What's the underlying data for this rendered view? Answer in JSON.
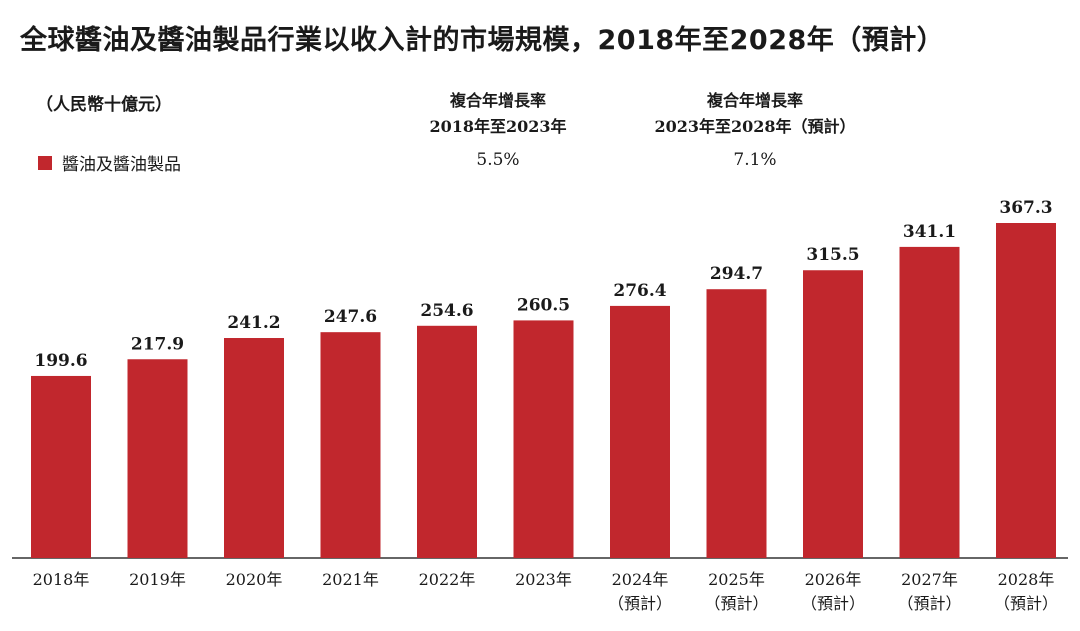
{
  "title": "全球醬油及醬油製品行業以收入計的市場規模，2018年至2028年（預計）",
  "unit": "（人民幣十億元）",
  "cagr": [
    {
      "head1": "複合年增長率",
      "head2": "2018年至2023年",
      "value": "5.5%"
    },
    {
      "head1": "複合年增長率",
      "head2": "2023年至2028年（預計）",
      "value": "7.1%"
    }
  ],
  "colors": {
    "bar": "#c1272d",
    "axis": "#333333"
  },
  "chart_data": {
    "type": "bar",
    "categories": [
      "2018年",
      "2019年",
      "2020年",
      "2021年",
      "2022年",
      "2023年",
      "2024年",
      "2025年",
      "2026年",
      "2027年",
      "2028年"
    ],
    "forecast_note": "（預計）",
    "forecast_from_index": 6,
    "series": [
      {
        "name": "醬油及醬油製品",
        "values": [
          199.6,
          217.9,
          241.2,
          247.6,
          254.6,
          260.5,
          276.4,
          294.7,
          315.5,
          341.1,
          367.3
        ],
        "labels": [
          "199.6",
          "217.9",
          "241.2",
          "247.6",
          "254.6",
          "260.5",
          "276.4",
          "294.7",
          "315.5",
          "341.1",
          "367.3"
        ]
      }
    ],
    "title": "全球醬油及醬油製品行業以收入計的市場規模，2018年至2028年（預計）",
    "ylabel": "（人民幣十億元）",
    "xlabel": "",
    "ylim": [
      0,
      367.3
    ],
    "grid": false,
    "legend_position": "top-left"
  }
}
